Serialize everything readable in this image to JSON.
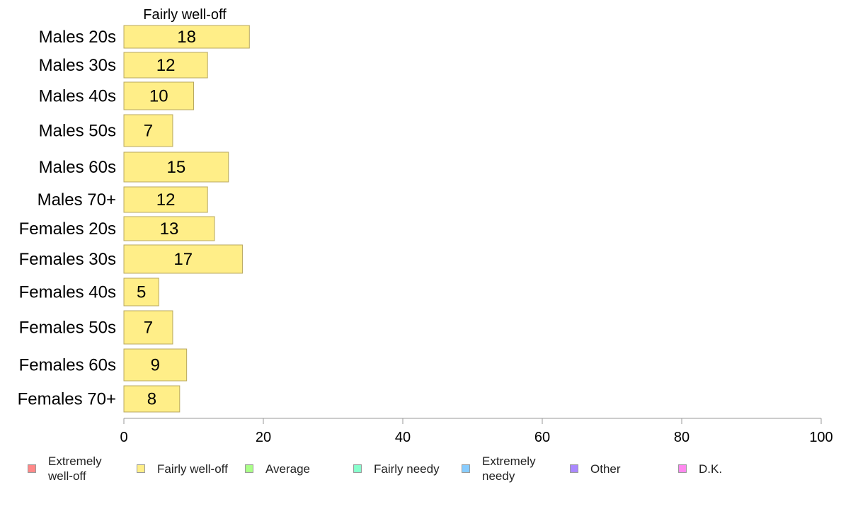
{
  "chart_data": {
    "type": "bar",
    "orientation": "horizontal",
    "title": "Fairly well-off",
    "categories": [
      "Males 20s",
      "Males 30s",
      "Males 40s",
      "Males 50s",
      "Males 60s",
      "Males 70+",
      "Females 20s",
      "Females 30s",
      "Females 40s",
      "Females 50s",
      "Females 60s",
      "Females 70+"
    ],
    "values": [
      18,
      12,
      10,
      7,
      15,
      12,
      13,
      17,
      5,
      7,
      9,
      8
    ],
    "data_labels": [
      "18",
      "12",
      "10",
      "7",
      "15",
      "12",
      "13",
      "17",
      "5",
      "7",
      "9",
      "8"
    ],
    "xlim": [
      0,
      100
    ],
    "xticks": [
      "0",
      "20",
      "40",
      "60",
      "80",
      "100"
    ],
    "bar_color": "#ffee88",
    "bar_stroke": "#b8a860",
    "grid": false,
    "legend": [
      {
        "label": "Extremely\nwell-off",
        "color": "#ff8888"
      },
      {
        "label": "Fairly well-off",
        "color": "#ffee88"
      },
      {
        "label": "Average",
        "color": "#aaff88"
      },
      {
        "label": "Fairly needy",
        "color": "#88ffcc"
      },
      {
        "label": "Extremely\nneedy",
        "color": "#88ccff"
      },
      {
        "label": "Other",
        "color": "#aa88ff"
      },
      {
        "label": "D.K.",
        "color": "#ff88ee"
      }
    ],
    "legend_position": "bottom"
  }
}
